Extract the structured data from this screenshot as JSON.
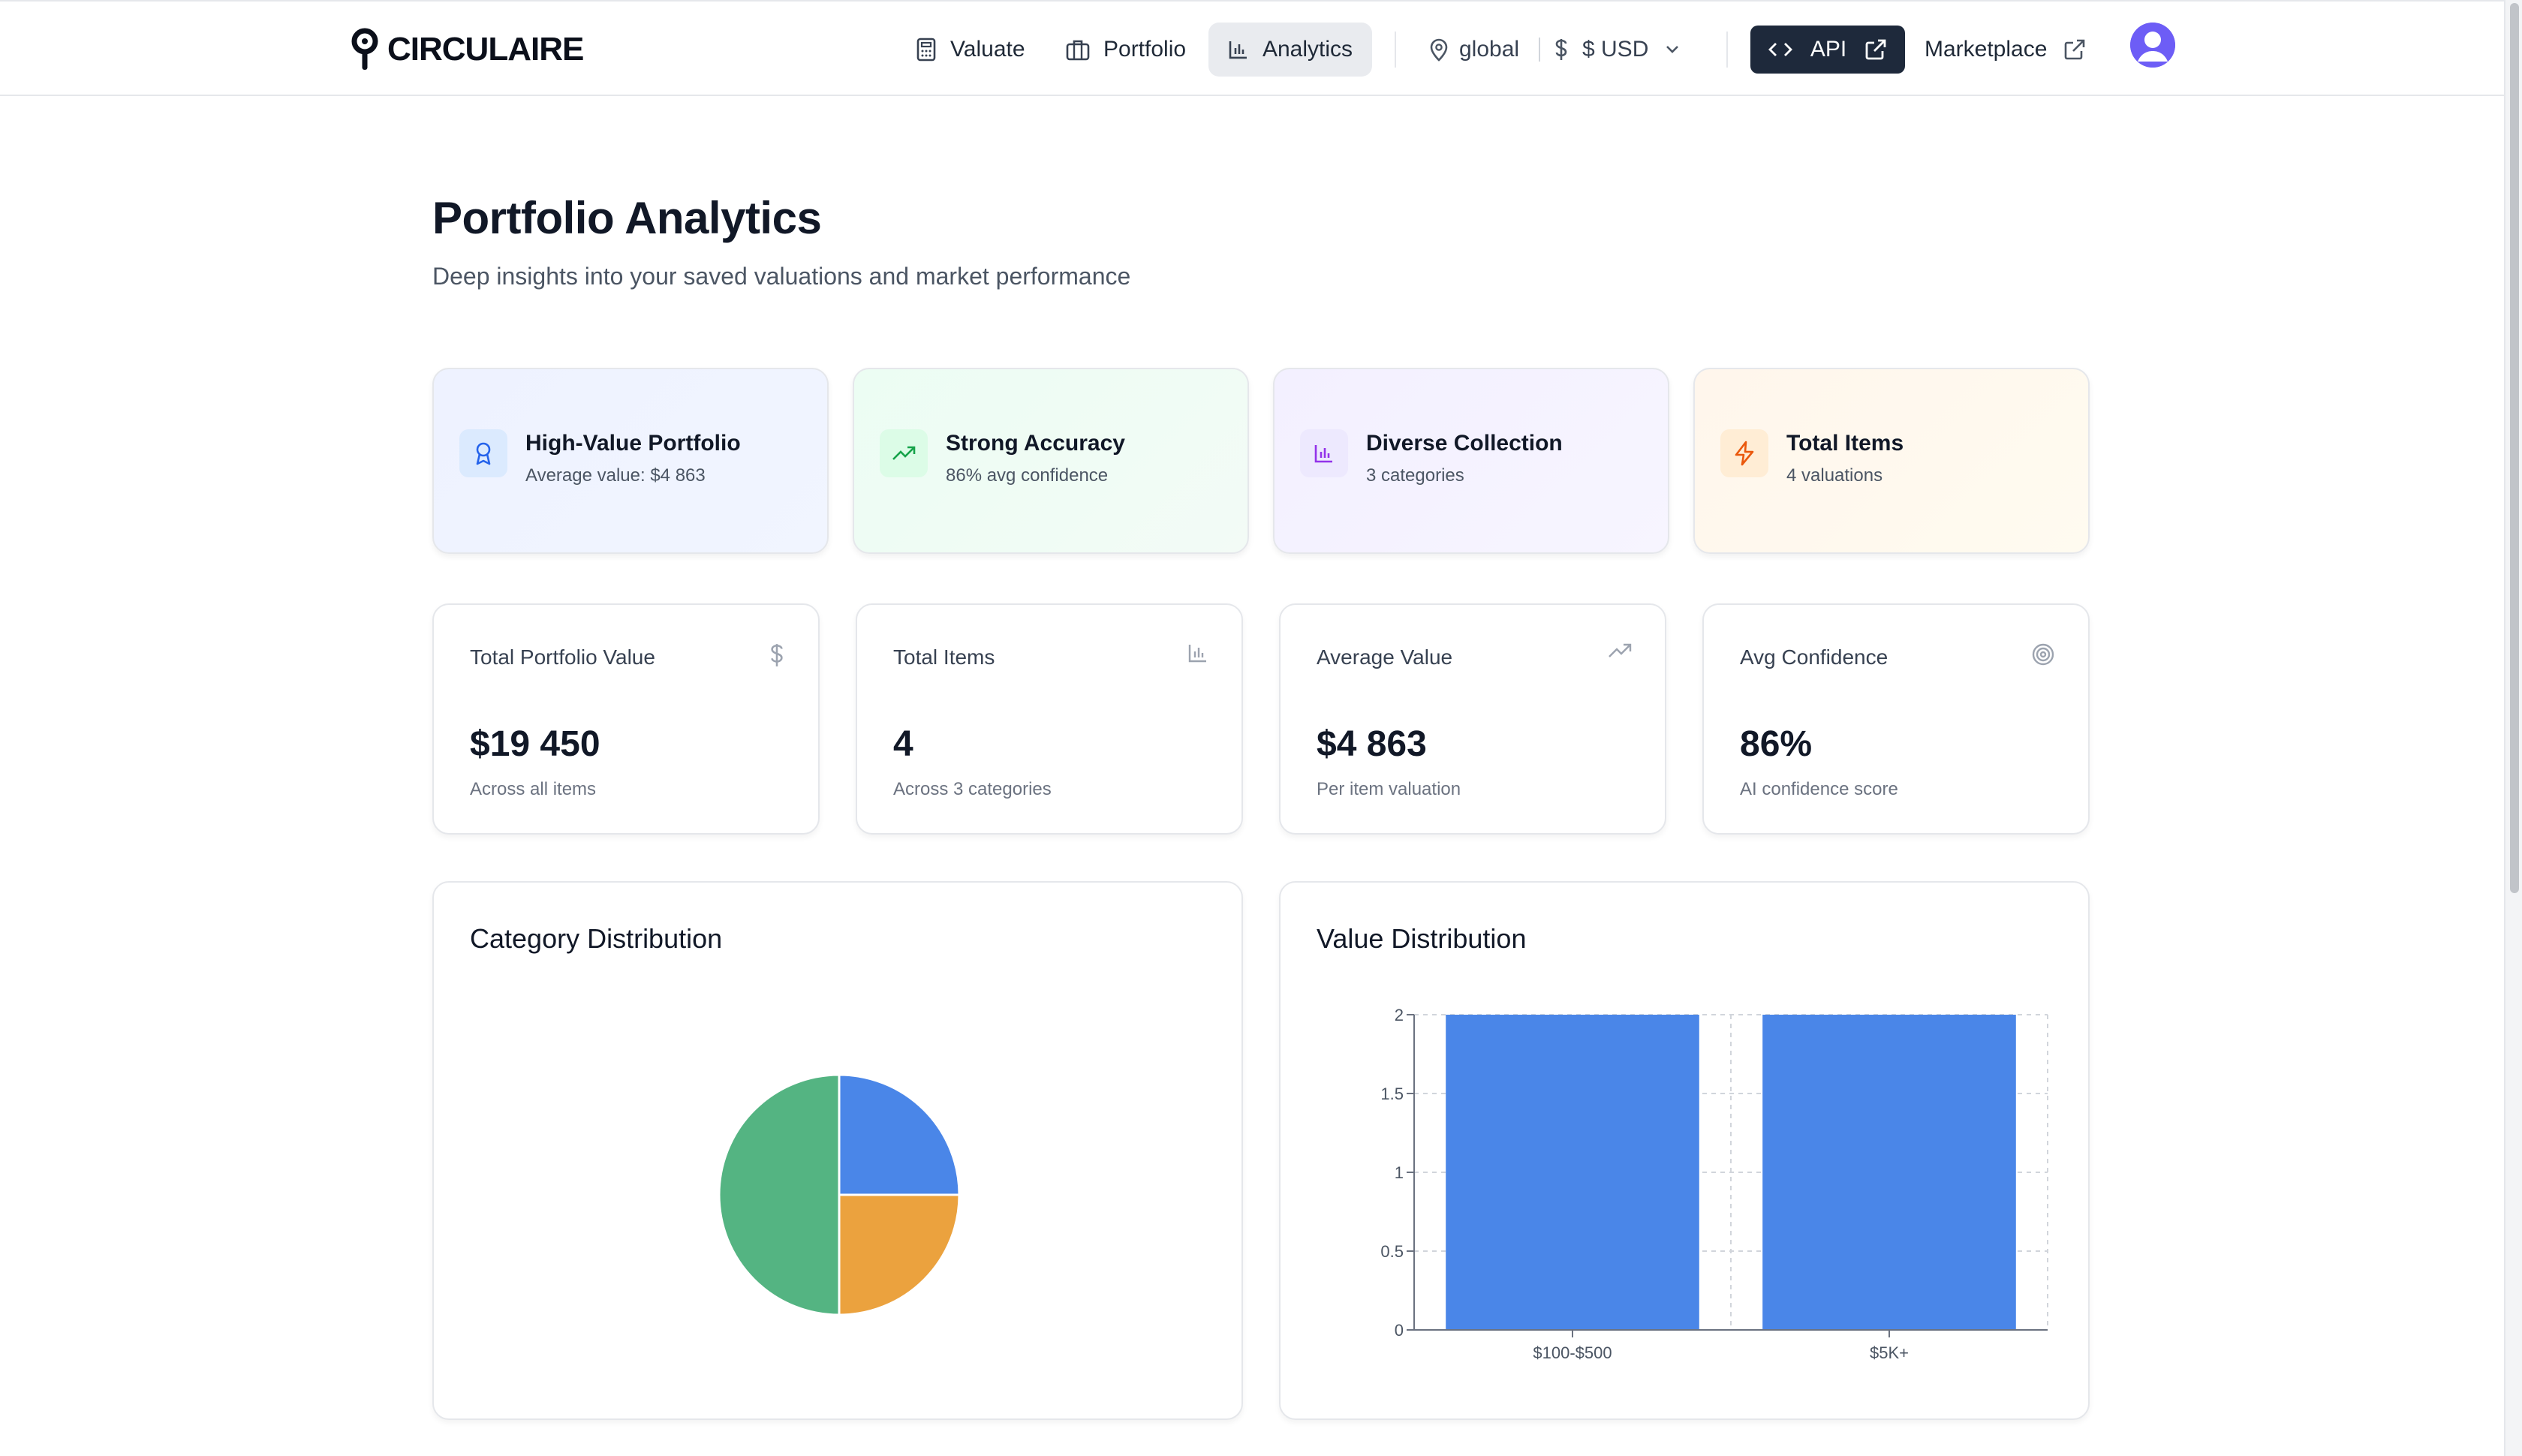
{
  "brand": {
    "name": "CIRCULAIRE"
  },
  "nav": {
    "items": [
      {
        "label": "Valuate",
        "icon": "calculator-icon"
      },
      {
        "label": "Portfolio",
        "icon": "briefcase-icon"
      },
      {
        "label": "Analytics",
        "icon": "bar-chart-icon",
        "active": true
      }
    ],
    "region": "global",
    "currency": "$ USD",
    "api_label": "API",
    "marketplace_label": "Marketplace"
  },
  "header": {
    "title": "Portfolio Analytics",
    "subtitle": "Deep insights into your saved valuations and market performance"
  },
  "highlights": [
    {
      "title": "High-Value Portfolio",
      "subtitle": "Average value: $4 863",
      "icon": "award-icon",
      "color": "#2563eb"
    },
    {
      "title": "Strong Accuracy",
      "subtitle": "86% avg confidence",
      "icon": "trending-up-icon",
      "color": "#16a34a"
    },
    {
      "title": "Diverse Collection",
      "subtitle": "3 categories",
      "icon": "bar-chart-icon",
      "color": "#9333ea"
    },
    {
      "title": "Total Items",
      "subtitle": "4 valuations",
      "icon": "lightning-icon",
      "color": "#ea580c"
    }
  ],
  "stats": [
    {
      "label": "Total Portfolio Value",
      "value": "$19 450",
      "sub": "Across all items",
      "icon": "dollar-icon"
    },
    {
      "label": "Total Items",
      "value": "4",
      "sub": "Across 3 categories",
      "icon": "bar-chart-icon"
    },
    {
      "label": "Average Value",
      "value": "$4 863",
      "sub": "Per item valuation",
      "icon": "trending-up-icon"
    },
    {
      "label": "Avg Confidence",
      "value": "86%",
      "sub": "AI confidence score",
      "icon": "target-icon"
    }
  ],
  "charts": {
    "category_title": "Category Distribution",
    "value_title": "Value Distribution"
  },
  "chart_data": [
    {
      "type": "pie",
      "title": "Category Distribution",
      "slices": [
        {
          "value": 1,
          "color": "#4a86e8"
        },
        {
          "value": 1,
          "color": "#eba23e"
        },
        {
          "value": 2,
          "color": "#54b482"
        }
      ]
    },
    {
      "type": "bar",
      "title": "Value Distribution",
      "categories": [
        "$100-$500",
        "$5K+"
      ],
      "values": [
        2,
        2
      ],
      "ylim": [
        0,
        2
      ],
      "yticks": [
        "0",
        "0.5",
        "1",
        "1.5",
        "2"
      ],
      "color": "#4a86e8",
      "grid": true
    }
  ]
}
